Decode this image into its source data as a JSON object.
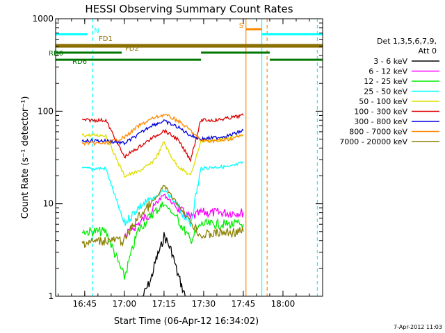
{
  "chart_data": {
    "type": "line",
    "title": "HESSI Observing Summary Count Rates",
    "xlabel": "Start Time (06-Apr-12 16:34:02)",
    "ylabel": "Count Rate (s⁻¹ detector⁻¹)",
    "yscale": "log",
    "ylim": [
      1,
      1000
    ],
    "xlim": [
      "16:34",
      "18:15"
    ],
    "x_ticks": [
      "16:45",
      "17:00",
      "17:15",
      "17:30",
      "17:45",
      "18:00"
    ],
    "y_ticks": [
      "1",
      "10",
      "100",
      "1000"
    ],
    "legend_title": "Det 1,3,5,6,7,9,",
    "legend_subtitle": "Att 0",
    "legend_position": "right",
    "timestamp": "7-Apr-2012 11:03",
    "series": [
      {
        "name": "3 - 6 keV",
        "color": "#000000",
        "x": [
          "17:07",
          "17:10",
          "17:12",
          "17:14",
          "17:15",
          "17:16",
          "17:18",
          "17:20",
          "17:23"
        ],
        "values": [
          1,
          1.5,
          2.5,
          3.5,
          4.5,
          4,
          3,
          1.8,
          1
        ]
      },
      {
        "name": "6 - 12 keV",
        "color": "#ff00ff",
        "x": [
          "17:00",
          "17:05",
          "17:10",
          "17:13",
          "17:15",
          "17:17",
          "17:20",
          "17:25",
          "17:29",
          "17:35",
          "17:40",
          "17:45"
        ],
        "values": [
          4.5,
          6,
          8,
          11,
          12.5,
          11,
          9,
          7,
          8,
          8,
          8,
          8
        ]
      },
      {
        "name": "12 - 25 keV",
        "color": "#00ee00",
        "x": [
          "16:44",
          "16:53",
          "17:00",
          "17:05",
          "17:10",
          "17:15",
          "17:20",
          "17:25",
          "17:29",
          "17:35",
          "17:45"
        ],
        "values": [
          5,
          5,
          1.6,
          5,
          7.5,
          10,
          7,
          4,
          6,
          6,
          6
        ]
      },
      {
        "name": "25 - 50 keV",
        "color": "#00ffff",
        "x": [
          "16:44",
          "16:53",
          "17:00",
          "17:05",
          "17:10",
          "17:13",
          "17:15",
          "17:17",
          "17:20",
          "17:25",
          "17:29",
          "17:35",
          "17:40",
          "17:45"
        ],
        "values": [
          24,
          24,
          6,
          9,
          11,
          12.5,
          14,
          12,
          9.5,
          6,
          24,
          25,
          25,
          28
        ]
      },
      {
        "name": "50 - 100 keV",
        "color": "#dddd00",
        "x": [
          "16:44",
          "16:53",
          "17:00",
          "17:05",
          "17:10",
          "17:13",
          "17:15",
          "17:17",
          "17:20",
          "17:25",
          "17:29",
          "17:35",
          "17:45"
        ],
        "values": [
          55,
          55,
          20,
          22,
          27,
          35,
          47,
          35,
          26,
          20,
          48,
          48,
          55
        ]
      },
      {
        "name": "100 - 300 keV",
        "color": "#dd0000",
        "x": [
          "16:44",
          "16:53",
          "17:00",
          "17:05",
          "17:10",
          "17:15",
          "17:20",
          "17:25",
          "17:29",
          "17:35",
          "17:40",
          "17:45"
        ],
        "values": [
          80,
          80,
          32,
          40,
          50,
          62,
          50,
          30,
          80,
          80,
          85,
          90
        ]
      },
      {
        "name": "300 - 800 keV",
        "color": "#0000dd",
        "x": [
          "16:44",
          "16:53",
          "17:00",
          "17:05",
          "17:10",
          "17:15",
          "17:20",
          "17:25",
          "17:29",
          "17:35",
          "17:40",
          "17:45"
        ],
        "values": [
          48,
          48,
          45,
          55,
          70,
          78,
          68,
          55,
          50,
          52,
          55,
          62
        ]
      },
      {
        "name": "800 - 7000 keV",
        "color": "#ff8800",
        "x": [
          "16:44",
          "16:53",
          "17:00",
          "17:05",
          "17:10",
          "17:15",
          "17:20",
          "17:25",
          "17:29",
          "17:35",
          "17:40",
          "17:45"
        ],
        "values": [
          45,
          45,
          52,
          68,
          82,
          92,
          80,
          62,
          48,
          48,
          50,
          55
        ]
      },
      {
        "name": "7000 - 20000 keV",
        "color": "#8b8000",
        "x": [
          "16:44",
          "16:53",
          "17:00",
          "17:05",
          "17:10",
          "17:13",
          "17:15",
          "17:17",
          "17:20",
          "17:25",
          "17:29",
          "17:35",
          "17:45"
        ],
        "values": [
          3.8,
          4,
          4,
          7,
          10,
          12.5,
          16,
          13,
          10,
          6.5,
          4.5,
          4.8,
          5
        ]
      }
    ],
    "flag_bars": [
      {
        "label": "N",
        "color": "#00ffff",
        "y": 680,
        "segments": [
          [
            "16:34",
            "16:46"
          ],
          [
            "17:52",
            "18:15"
          ]
        ]
      },
      {
        "label": "FD1",
        "color": "#8b7000",
        "y": 520,
        "segments": [
          [
            "16:34",
            "18:15"
          ]
        ]
      },
      {
        "label": "FD2",
        "color": "#8b7000",
        "y": 500,
        "segments": [
          [
            "16:34",
            "18:15"
          ]
        ]
      },
      {
        "label": "RD0",
        "color": "#007700",
        "y": 430,
        "segments": [
          [
            "16:34",
            "16:59"
          ],
          [
            "17:29",
            "17:55"
          ]
        ]
      },
      {
        "label": "RD6",
        "color": "#007700",
        "y": 360,
        "segments": [
          [
            "16:34",
            "17:29"
          ],
          [
            "17:55",
            "18:15"
          ]
        ]
      },
      {
        "label": "S",
        "color": "#ff8800",
        "y": 770,
        "segments": [
          [
            "17:46",
            "17:52"
          ]
        ]
      }
    ],
    "markers": [
      {
        "x": "16:34",
        "color": "#00ffff",
        "style": "solid"
      },
      {
        "x": "16:48",
        "color": "#00ffff",
        "style": "dashed"
      },
      {
        "x": "17:46",
        "color": "#ff8800",
        "style": "solid"
      },
      {
        "x": "17:52",
        "color": "#00ffff",
        "style": "solid"
      },
      {
        "x": "17:54",
        "color": "#ff8800",
        "style": "dashed"
      },
      {
        "x": "18:13",
        "color": "#00ffff",
        "style": "dashed"
      }
    ]
  }
}
